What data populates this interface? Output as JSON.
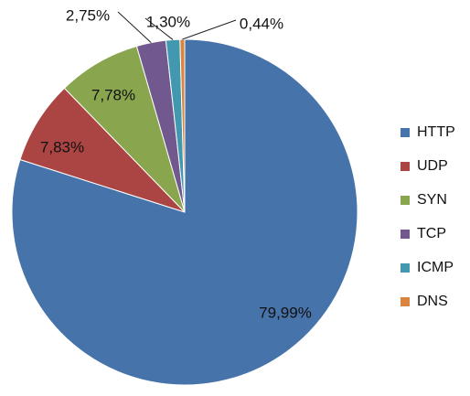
{
  "chart_data": {
    "type": "pie",
    "title": "",
    "legend_position": "right",
    "slices": [
      {
        "name": "HTTP",
        "value": 79.99,
        "label": "79,99%",
        "color": "#4673AA"
      },
      {
        "name": "UDP",
        "value": 7.83,
        "label": "7,83%",
        "color": "#AA4543"
      },
      {
        "name": "SYN",
        "value": 7.78,
        "label": "7,78%",
        "color": "#89A54E"
      },
      {
        "name": "TCP",
        "value": 2.75,
        "label": "2,75%",
        "color": "#71588F"
      },
      {
        "name": "ICMP",
        "value": 1.3,
        "label": "1,30%",
        "color": "#4198AF"
      },
      {
        "name": "DNS",
        "value": 0.44,
        "label": "0,44%",
        "color": "#DB843D"
      }
    ]
  }
}
